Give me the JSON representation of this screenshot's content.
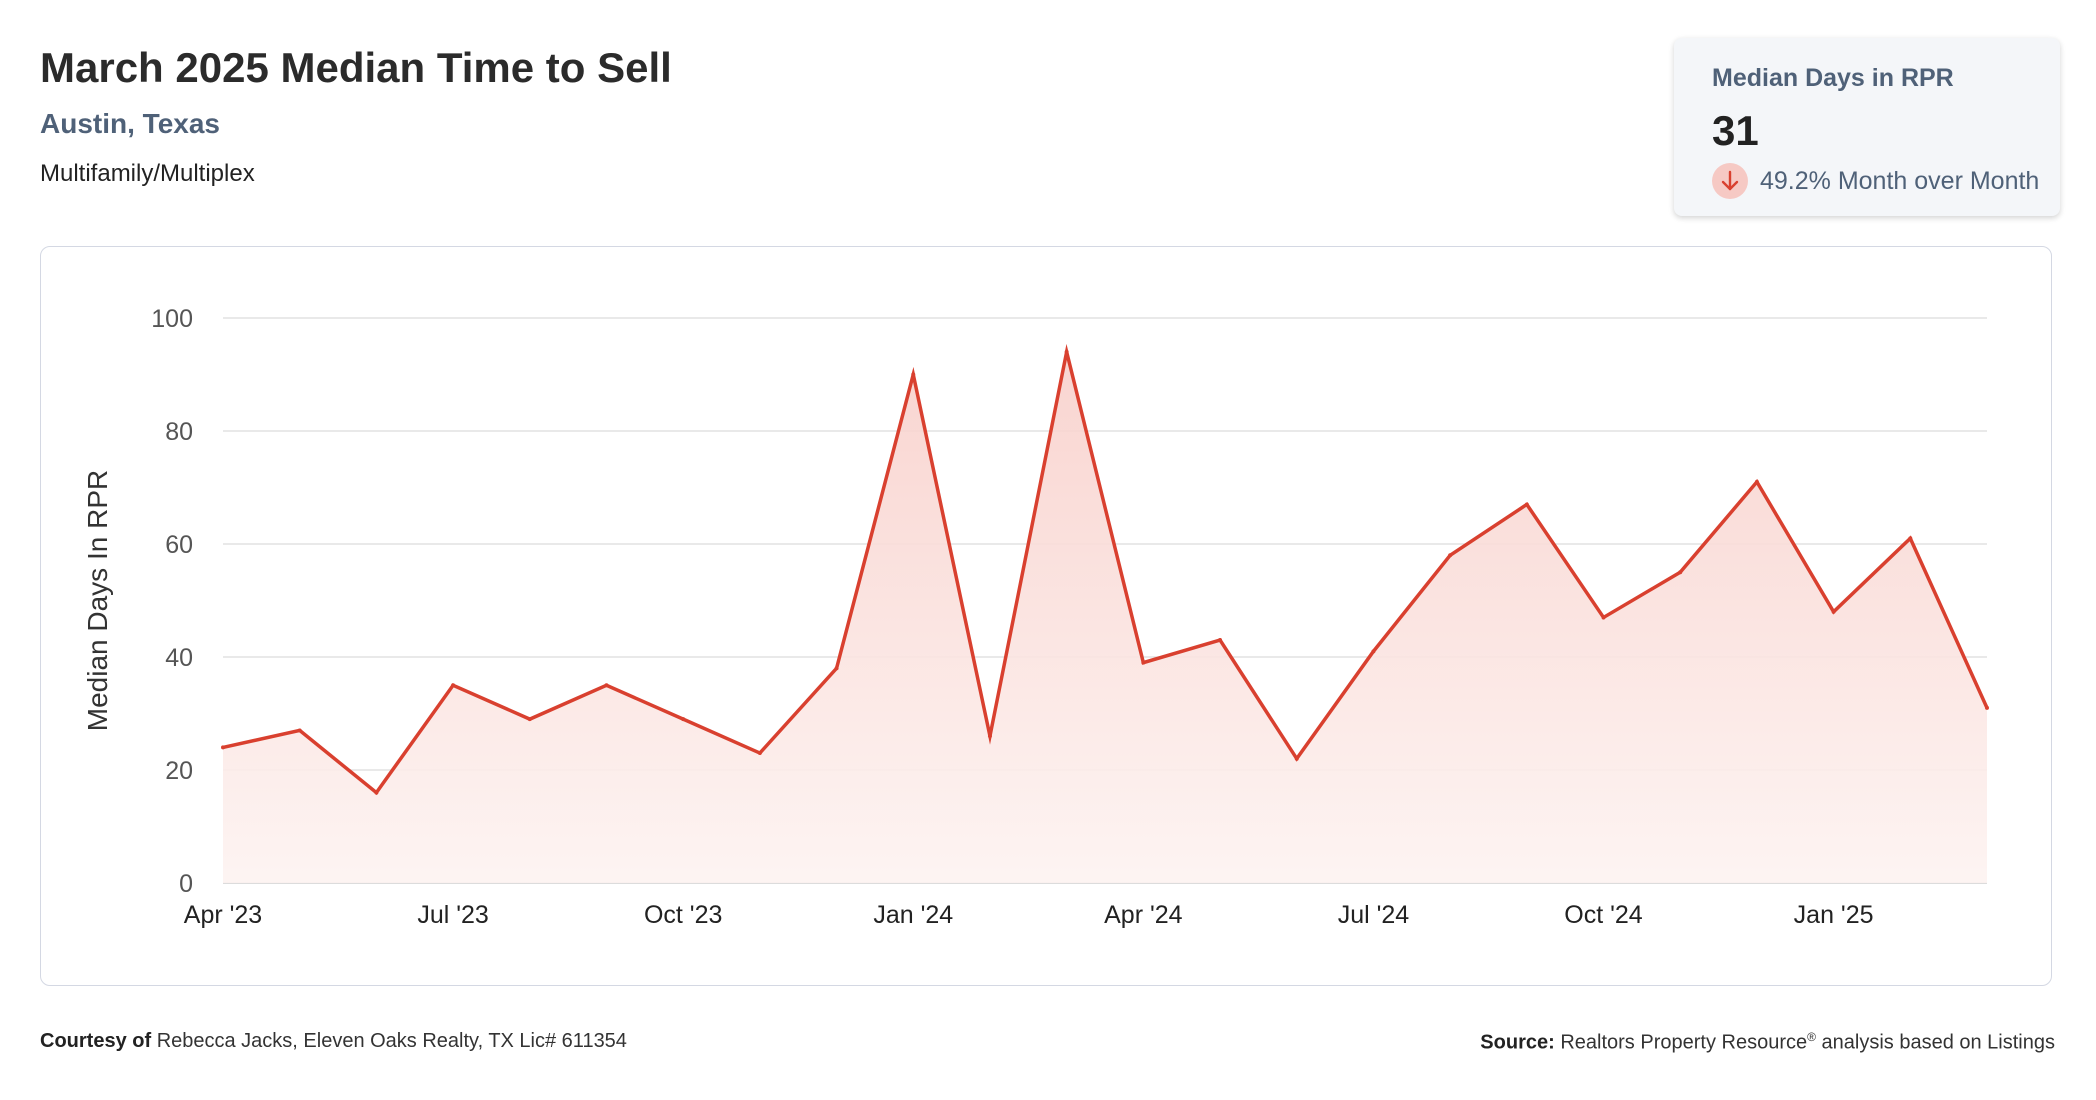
{
  "header": {
    "title": "March 2025 Median Time to Sell",
    "location": "Austin, Texas",
    "property_type": "Multifamily/Multiplex"
  },
  "stat_card": {
    "label": "Median Days in RPR",
    "value": "31",
    "change": "49.2% Month over Month",
    "direction": "down",
    "icon": "arrow-down-icon",
    "icon_color": "#d9402f",
    "icon_bg": "#f6c9c4"
  },
  "colors": {
    "line": "#d9402f",
    "fill_top": "#f8d0cb",
    "fill_bottom": "#fdf3f1",
    "grid": "#dcdcdc",
    "title": "#2b2b2b",
    "accent": "#4f6178"
  },
  "chart_data": {
    "type": "area",
    "ylabel": "Median Days In RPR",
    "xlabel": "",
    "ylim": [
      0,
      100
    ],
    "yticks": [
      0,
      20,
      40,
      60,
      80,
      100
    ],
    "grid": true,
    "x_ticks": [
      {
        "label": "Apr '23",
        "index": 0
      },
      {
        "label": "Jul '23",
        "index": 3
      },
      {
        "label": "Oct '23",
        "index": 6
      },
      {
        "label": "Jan '24",
        "index": 9
      },
      {
        "label": "Apr '24",
        "index": 12
      },
      {
        "label": "Jul '24",
        "index": 15
      },
      {
        "label": "Oct '24",
        "index": 18
      },
      {
        "label": "Jan '25",
        "index": 21
      }
    ],
    "x": [
      "2023-04",
      "2023-05",
      "2023-06",
      "2023-07",
      "2023-08",
      "2023-09",
      "2023-10",
      "2023-11",
      "2023-12",
      "2024-01",
      "2024-02",
      "2024-03",
      "2024-04",
      "2024-05",
      "2024-06",
      "2024-07",
      "2024-08",
      "2024-09",
      "2024-10",
      "2024-11",
      "2024-12",
      "2025-01",
      "2025-02",
      "2025-03"
    ],
    "values": [
      24,
      27,
      16,
      35,
      29,
      35,
      29,
      23,
      38,
      90,
      26,
      94,
      39,
      43,
      22,
      41,
      58,
      67,
      47,
      55,
      71,
      48,
      61,
      31
    ]
  },
  "footer": {
    "courtesy_label": "Courtesy of",
    "courtesy_text": "Rebecca Jacks, Eleven Oaks Realty, TX Lic# 611354",
    "source_label": "Source:",
    "source_text_1": "Realtors Property Resource",
    "source_mark": "®",
    "source_text_2": " analysis based on Listings"
  }
}
